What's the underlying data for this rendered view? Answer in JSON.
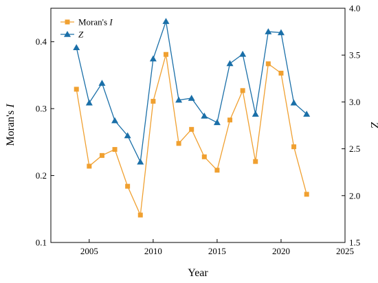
{
  "chart_data": {
    "type": "line",
    "xlabel": "Year",
    "ylabel_left": "Moran's I",
    "ylabel_right": "Z",
    "xlim": [
      2002,
      2025
    ],
    "ylim_left": [
      0.1,
      0.45
    ],
    "ylim_right": [
      1.5,
      4.0
    ],
    "xticks": [
      2005,
      2010,
      2015,
      2020,
      2025
    ],
    "yticks_left": [
      0.1,
      0.2,
      0.3,
      0.4
    ],
    "yticks_right": [
      1.5,
      2.0,
      2.5,
      3.0,
      3.5,
      4.0
    ],
    "legend_position": "top-left",
    "grid": false,
    "x": [
      2004,
      2005,
      2006,
      2007,
      2008,
      2009,
      2010,
      2011,
      2012,
      2013,
      2014,
      2015,
      2016,
      2017,
      2018,
      2019,
      2020,
      2021,
      2022
    ],
    "series": [
      {
        "name": "Moran's I",
        "legend_name": "Moran's",
        "legend_italic": "I",
        "axis": "left",
        "marker": "square",
        "color": "#f0a030",
        "values": [
          0.329,
          0.214,
          0.23,
          0.239,
          0.184,
          0.141,
          0.311,
          0.381,
          0.248,
          0.269,
          0.228,
          0.208,
          0.283,
          0.327,
          0.221,
          0.367,
          0.353,
          0.243,
          0.172
        ]
      },
      {
        "name": "Z",
        "axis": "right",
        "marker": "triangle",
        "color": "#1a6fa8",
        "values": [
          3.58,
          2.99,
          3.2,
          2.8,
          2.64,
          2.36,
          3.46,
          3.86,
          3.02,
          3.04,
          2.85,
          2.78,
          3.41,
          3.51,
          2.87,
          3.75,
          3.74,
          2.99,
          2.87
        ]
      }
    ]
  }
}
